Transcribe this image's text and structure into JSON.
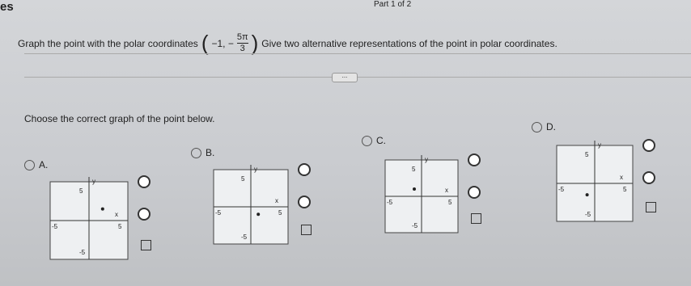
{
  "header": {
    "title": "es",
    "part": "Part 1 of 2"
  },
  "question": {
    "before": "Graph the point with the polar coordinates",
    "prefix": "−1, −",
    "numerator": "5π",
    "denominator": "3",
    "after": "Give two alternative representations of the point in polar coordinates."
  },
  "more_button": "...",
  "instruction": "Choose the correct graph of the point below.",
  "options": [
    {
      "letter": "A.",
      "y": "y",
      "x": "x",
      "top": "5",
      "bottom": "-5",
      "left": "-5",
      "right": "5"
    },
    {
      "letter": "B.",
      "y": "y",
      "x": "x",
      "top": "5",
      "bottom": "-5",
      "left": "-5",
      "right": "5"
    },
    {
      "letter": "C.",
      "y": "y",
      "x": "x",
      "top": "5",
      "bottom": "-5",
      "left": "-5",
      "right": "5"
    },
    {
      "letter": "D.",
      "y": "y",
      "x": "x",
      "top": "5",
      "bottom": "-5",
      "left": "-5",
      "right": "5"
    }
  ]
}
